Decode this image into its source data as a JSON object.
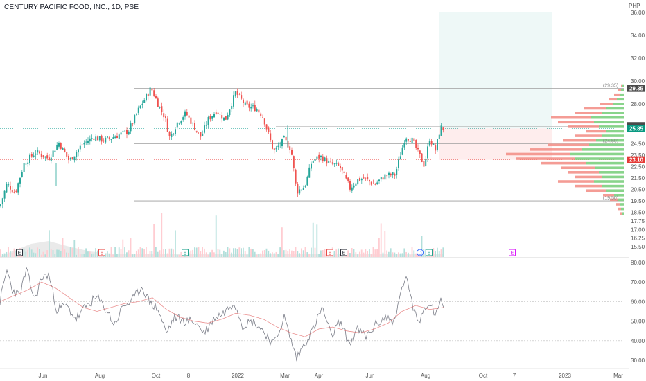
{
  "header": {
    "title": "CENTURY PACIFIC FOOD, INC., 1D, PSE",
    "currency": "PHP"
  },
  "colors": {
    "up": "#26a69a",
    "down": "#ef5350",
    "rsi": "#787b86",
    "rsi_ma": "#e57373",
    "accent": "#089981"
  },
  "chart_data": {
    "type": "candlestick",
    "xticks": [
      "Jun",
      "Aug",
      "Oct",
      "8",
      "2022",
      "Mar",
      "Apr",
      "Jun",
      "Aug",
      "Oct",
      "7",
      "2023",
      "Mar"
    ],
    "price_ticks": [
      "36.00",
      "34.00",
      "32.00",
      "30.00",
      "28.00",
      "26.00",
      "24.50",
      "23.50",
      "22.50",
      "21.50",
      "20.50",
      "19.50",
      "18.50",
      "17.75",
      "17.00",
      "16.25",
      "15.50"
    ],
    "price_ticks_values": [
      36,
      34,
      32,
      30,
      28,
      26,
      24.5,
      23.5,
      22.5,
      21.5,
      20.5,
      19.5,
      18.5,
      17.75,
      17,
      16.25,
      15.5
    ],
    "price_labels": [
      {
        "text": "29.35",
        "value": 29.35,
        "color": "#4a4a4a"
      },
      {
        "text": "26.10",
        "value": 26.1,
        "color": "#4a4a4a"
      },
      {
        "text": "26.00",
        "value": 26.0,
        "color": "#4a4a4a"
      },
      {
        "text": "25.85",
        "value": 25.85,
        "color": "#089981"
      },
      {
        "text": "23.10",
        "value": 23.1,
        "color": "#e53935"
      }
    ],
    "annotations": [
      "(29.35)",
      "(24.50)",
      "(19.50)"
    ],
    "levels": [
      29.35,
      26.0,
      24.5,
      19.5
    ],
    "position": {
      "entry": 25.85,
      "target": 36.0,
      "stop": 23.1
    },
    "price_anchors": [
      [
        0,
        19.0
      ],
      [
        10,
        21.0
      ],
      [
        22,
        20.2
      ],
      [
        35,
        22.8
      ],
      [
        52,
        23.8
      ],
      [
        70,
        23.2
      ],
      [
        85,
        24.6
      ],
      [
        100,
        23.0
      ],
      [
        118,
        24.4
      ],
      [
        135,
        25.1
      ],
      [
        150,
        24.8
      ],
      [
        168,
        25.2
      ],
      [
        185,
        25.6
      ],
      [
        200,
        27.5
      ],
      [
        218,
        29.4
      ],
      [
        228,
        28.0
      ],
      [
        238,
        26.8
      ],
      [
        245,
        25.0
      ],
      [
        255,
        26.3
      ],
      [
        268,
        27.2
      ],
      [
        280,
        26.0
      ],
      [
        290,
        25.1
      ],
      [
        300,
        26.6
      ],
      [
        312,
        27.4
      ],
      [
        325,
        26.6
      ],
      [
        340,
        29.0
      ],
      [
        355,
        27.8
      ],
      [
        370,
        27.6
      ],
      [
        380,
        26.8
      ],
      [
        395,
        23.8
      ],
      [
        410,
        24.9
      ],
      [
        420,
        24.0
      ],
      [
        428,
        20.3
      ],
      [
        440,
        20.8
      ],
      [
        450,
        23.0
      ],
      [
        462,
        23.4
      ],
      [
        475,
        22.8
      ],
      [
        490,
        22.5
      ],
      [
        505,
        20.6
      ],
      [
        515,
        21.3
      ],
      [
        525,
        21.5
      ],
      [
        540,
        20.9
      ],
      [
        555,
        21.7
      ],
      [
        570,
        21.8
      ],
      [
        585,
        25.2
      ],
      [
        595,
        24.8
      ],
      [
        605,
        23.5
      ],
      [
        612,
        22.6
      ],
      [
        620,
        25.0
      ],
      [
        628,
        23.9
      ],
      [
        635,
        25.8
      ],
      [
        640,
        25.85
      ]
    ],
    "volume_profile": [
      [
        29.6,
        4
      ],
      [
        29.2,
        8
      ],
      [
        28.8,
        14
      ],
      [
        28.4,
        22
      ],
      [
        28.0,
        35
      ],
      [
        27.6,
        58
      ],
      [
        27.2,
        70
      ],
      [
        26.8,
        105
      ],
      [
        26.4,
        95
      ],
      [
        26.0,
        80
      ],
      [
        25.6,
        55
      ],
      [
        25.2,
        70
      ],
      [
        24.8,
        88
      ],
      [
        24.4,
        110
      ],
      [
        24.0,
        135
      ],
      [
        23.6,
        170
      ],
      [
        23.2,
        155
      ],
      [
        22.8,
        120
      ],
      [
        22.4,
        90
      ],
      [
        22.0,
        80
      ],
      [
        21.6,
        70
      ],
      [
        21.2,
        95
      ],
      [
        20.8,
        70
      ],
      [
        20.4,
        55
      ],
      [
        20.0,
        30
      ],
      [
        19.6,
        20
      ],
      [
        19.2,
        12
      ],
      [
        18.8,
        8
      ],
      [
        18.4,
        6
      ]
    ],
    "events": [
      {
        "text": "E",
        "x": 28,
        "color": "#131722"
      },
      {
        "text": "E",
        "x": 147,
        "color": "#e53935"
      },
      {
        "text": "E",
        "x": 267,
        "color": "#089981"
      },
      {
        "text": "E",
        "x": 476,
        "color": "#e53935"
      },
      {
        "text": "E",
        "x": 496,
        "color": "#131722"
      },
      {
        "text": "D",
        "x": 606,
        "color": "#2962ff"
      },
      {
        "text": "E",
        "x": 619,
        "color": "#089981"
      },
      {
        "text": "E",
        "x": 739,
        "color": "#d500f9"
      }
    ],
    "rsi": {
      "ticks": [
        "80.00",
        "70.00",
        "60.00",
        "50.00",
        "40.00",
        "30.00"
      ],
      "ticks_values": [
        80,
        70,
        60,
        50,
        40,
        30
      ],
      "levels": [
        60,
        40
      ],
      "anchors": [
        [
          0,
          60
        ],
        [
          10,
          76
        ],
        [
          18,
          66
        ],
        [
          28,
          63
        ],
        [
          38,
          76
        ],
        [
          50,
          61
        ],
        [
          60,
          72
        ],
        [
          70,
          74
        ],
        [
          82,
          56
        ],
        [
          95,
          58
        ],
        [
          110,
          51
        ],
        [
          125,
          58
        ],
        [
          140,
          62
        ],
        [
          155,
          55
        ],
        [
          165,
          48
        ],
        [
          178,
          58
        ],
        [
          190,
          60
        ],
        [
          205,
          68
        ],
        [
          215,
          60
        ],
        [
          228,
          56
        ],
        [
          240,
          44
        ],
        [
          252,
          52
        ],
        [
          265,
          50
        ],
        [
          280,
          50
        ],
        [
          295,
          44
        ],
        [
          310,
          52
        ],
        [
          322,
          54
        ],
        [
          338,
          60
        ],
        [
          350,
          48
        ],
        [
          365,
          50
        ],
        [
          380,
          45
        ],
        [
          395,
          38
        ],
        [
          410,
          52
        ],
        [
          420,
          40
        ],
        [
          428,
          31
        ],
        [
          440,
          39
        ],
        [
          452,
          46
        ],
        [
          465,
          57
        ],
        [
          478,
          42
        ],
        [
          490,
          50
        ],
        [
          505,
          38
        ],
        [
          515,
          46
        ],
        [
          528,
          42
        ],
        [
          542,
          48
        ],
        [
          555,
          52
        ],
        [
          570,
          50
        ],
        [
          580,
          68
        ],
        [
          588,
          72
        ],
        [
          596,
          55
        ],
        [
          605,
          50
        ],
        [
          612,
          57
        ],
        [
          620,
          60
        ],
        [
          628,
          54
        ],
        [
          635,
          60
        ],
        [
          640,
          59
        ]
      ],
      "ma_anchors": [
        [
          0,
          60
        ],
        [
          20,
          63
        ],
        [
          40,
          66
        ],
        [
          60,
          70
        ],
        [
          80,
          67
        ],
        [
          100,
          62
        ],
        [
          120,
          57
        ],
        [
          140,
          55
        ],
        [
          160,
          57
        ],
        [
          180,
          59
        ],
        [
          200,
          60
        ],
        [
          220,
          62
        ],
        [
          240,
          56
        ],
        [
          260,
          52
        ],
        [
          280,
          50
        ],
        [
          300,
          49
        ],
        [
          320,
          51
        ],
        [
          340,
          54
        ],
        [
          360,
          53
        ],
        [
          380,
          51
        ],
        [
          400,
          47
        ],
        [
          420,
          44
        ],
        [
          440,
          42
        ],
        [
          460,
          46
        ],
        [
          480,
          47
        ],
        [
          500,
          45
        ],
        [
          520,
          44
        ],
        [
          540,
          46
        ],
        [
          560,
          49
        ],
        [
          580,
          55
        ],
        [
          600,
          58
        ],
        [
          620,
          56
        ],
        [
          640,
          57
        ]
      ]
    }
  }
}
